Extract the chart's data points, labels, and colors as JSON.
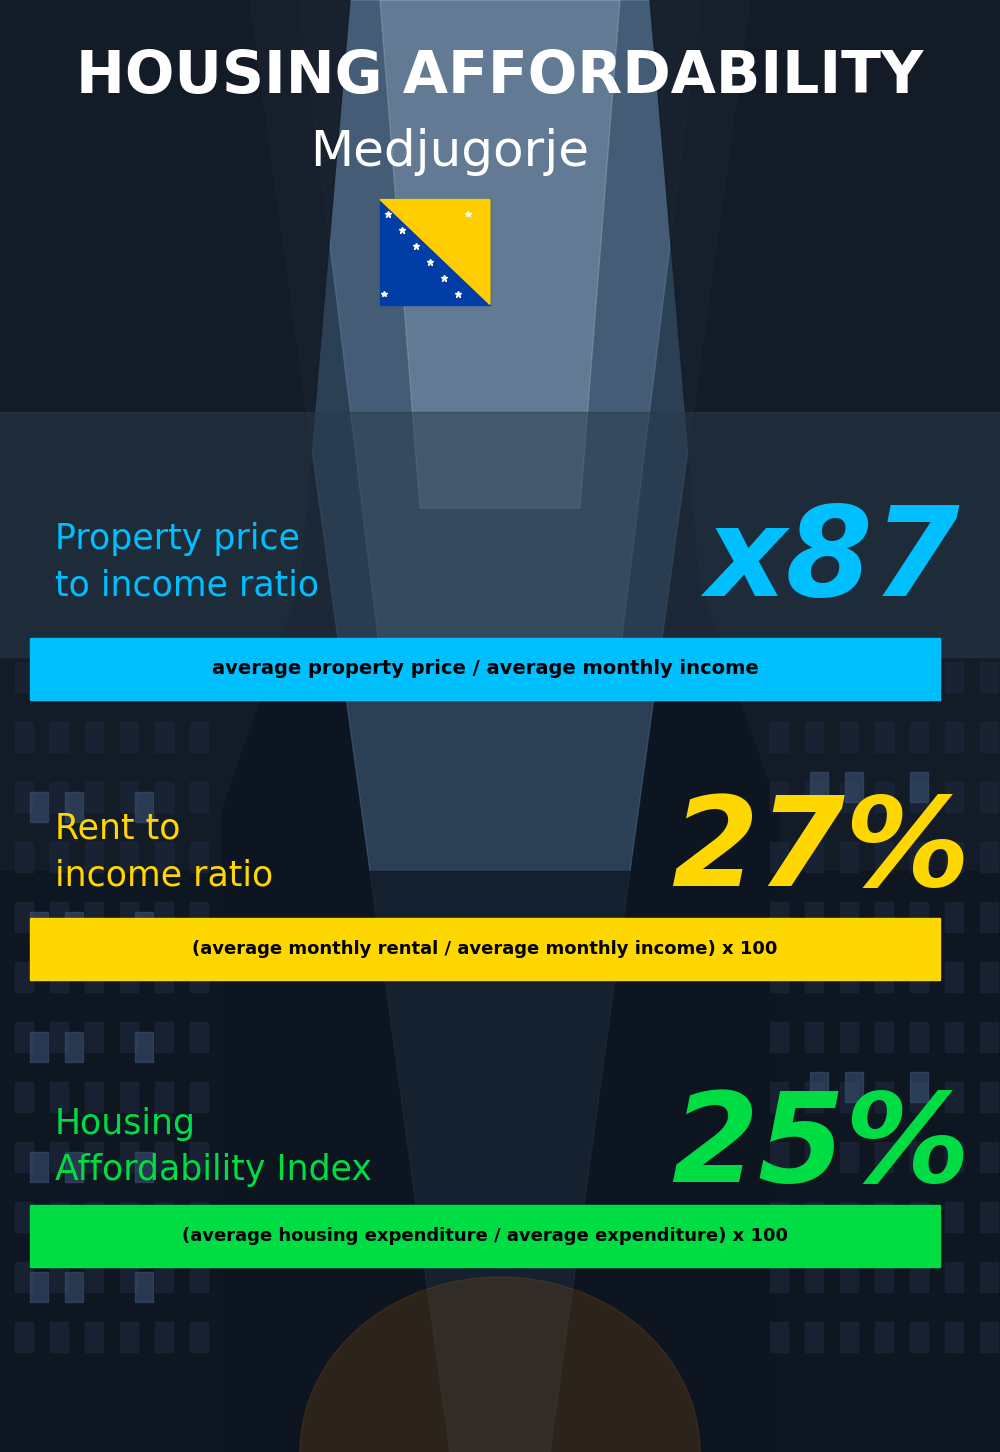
{
  "title_line1": "HOUSING AFFORDABILITY",
  "title_line2": "Medjugorje",
  "section1_label": "Property price\nto income ratio",
  "section1_value": "x87",
  "section1_sublabel": "average property price / average monthly income",
  "section1_label_color": "#00BFFF",
  "section1_value_color": "#00BFFF",
  "section1_bar_color": "#00BFFF",
  "section2_label": "Rent to\nincome ratio",
  "section2_value": "27%",
  "section2_sublabel": "(average monthly rental / average monthly income) x 100",
  "section2_label_color": "#FFD700",
  "section2_value_color": "#FFD700",
  "section2_bar_color": "#FFD700",
  "section3_label": "Housing\nAffordability Index",
  "section3_value": "25%",
  "section3_sublabel": "(average housing expenditure / average expenditure) x 100",
  "section3_label_color": "#00DD44",
  "section3_value_color": "#00DD44",
  "section3_bar_color": "#00DD44",
  "text_color_white": "#FFFFFF",
  "text_color_black": "#000000",
  "panel_color": "#2a3a4a",
  "panel_alpha": 0.55
}
